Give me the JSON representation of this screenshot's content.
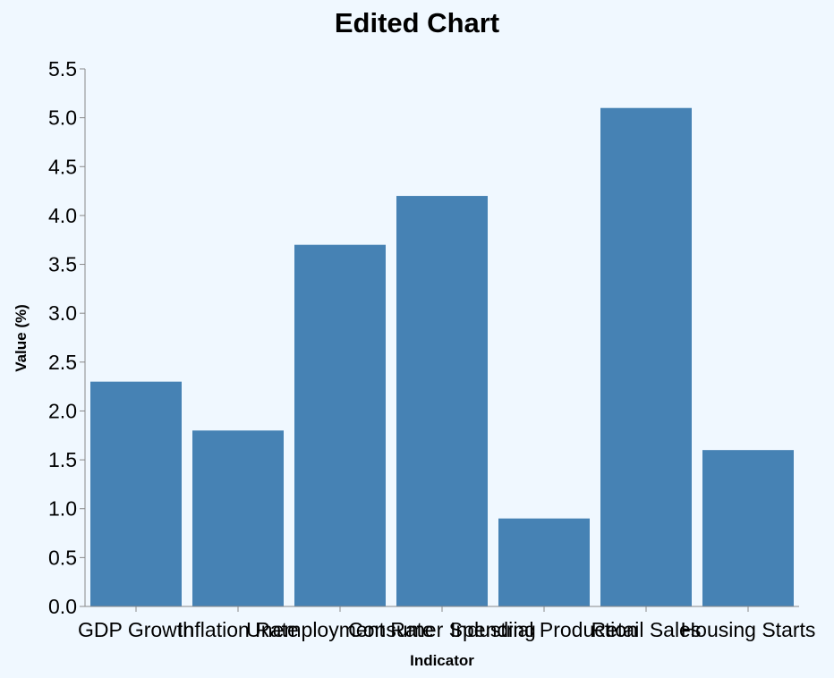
{
  "chart_data": {
    "type": "bar",
    "title": "Edited Chart",
    "xlabel": "Indicator",
    "ylabel": "Value (%)",
    "categories": [
      "GDP Growth",
      "Inflation Rate",
      "Unemployment Rate",
      "Consumer Spending",
      "Industrial Production",
      "Retail Sales",
      "Housing Starts"
    ],
    "values": [
      2.3,
      1.8,
      3.7,
      4.2,
      0.9,
      5.1,
      1.6
    ],
    "ylim": [
      0,
      5.5
    ],
    "yticks": [
      "0.0",
      "0.5",
      "1.0",
      "1.5",
      "2.0",
      "2.5",
      "3.0",
      "3.5",
      "4.0",
      "4.5",
      "5.0",
      "5.5"
    ],
    "grid": false,
    "bar_color": "#4682b4",
    "background": "#f0f8ff"
  }
}
